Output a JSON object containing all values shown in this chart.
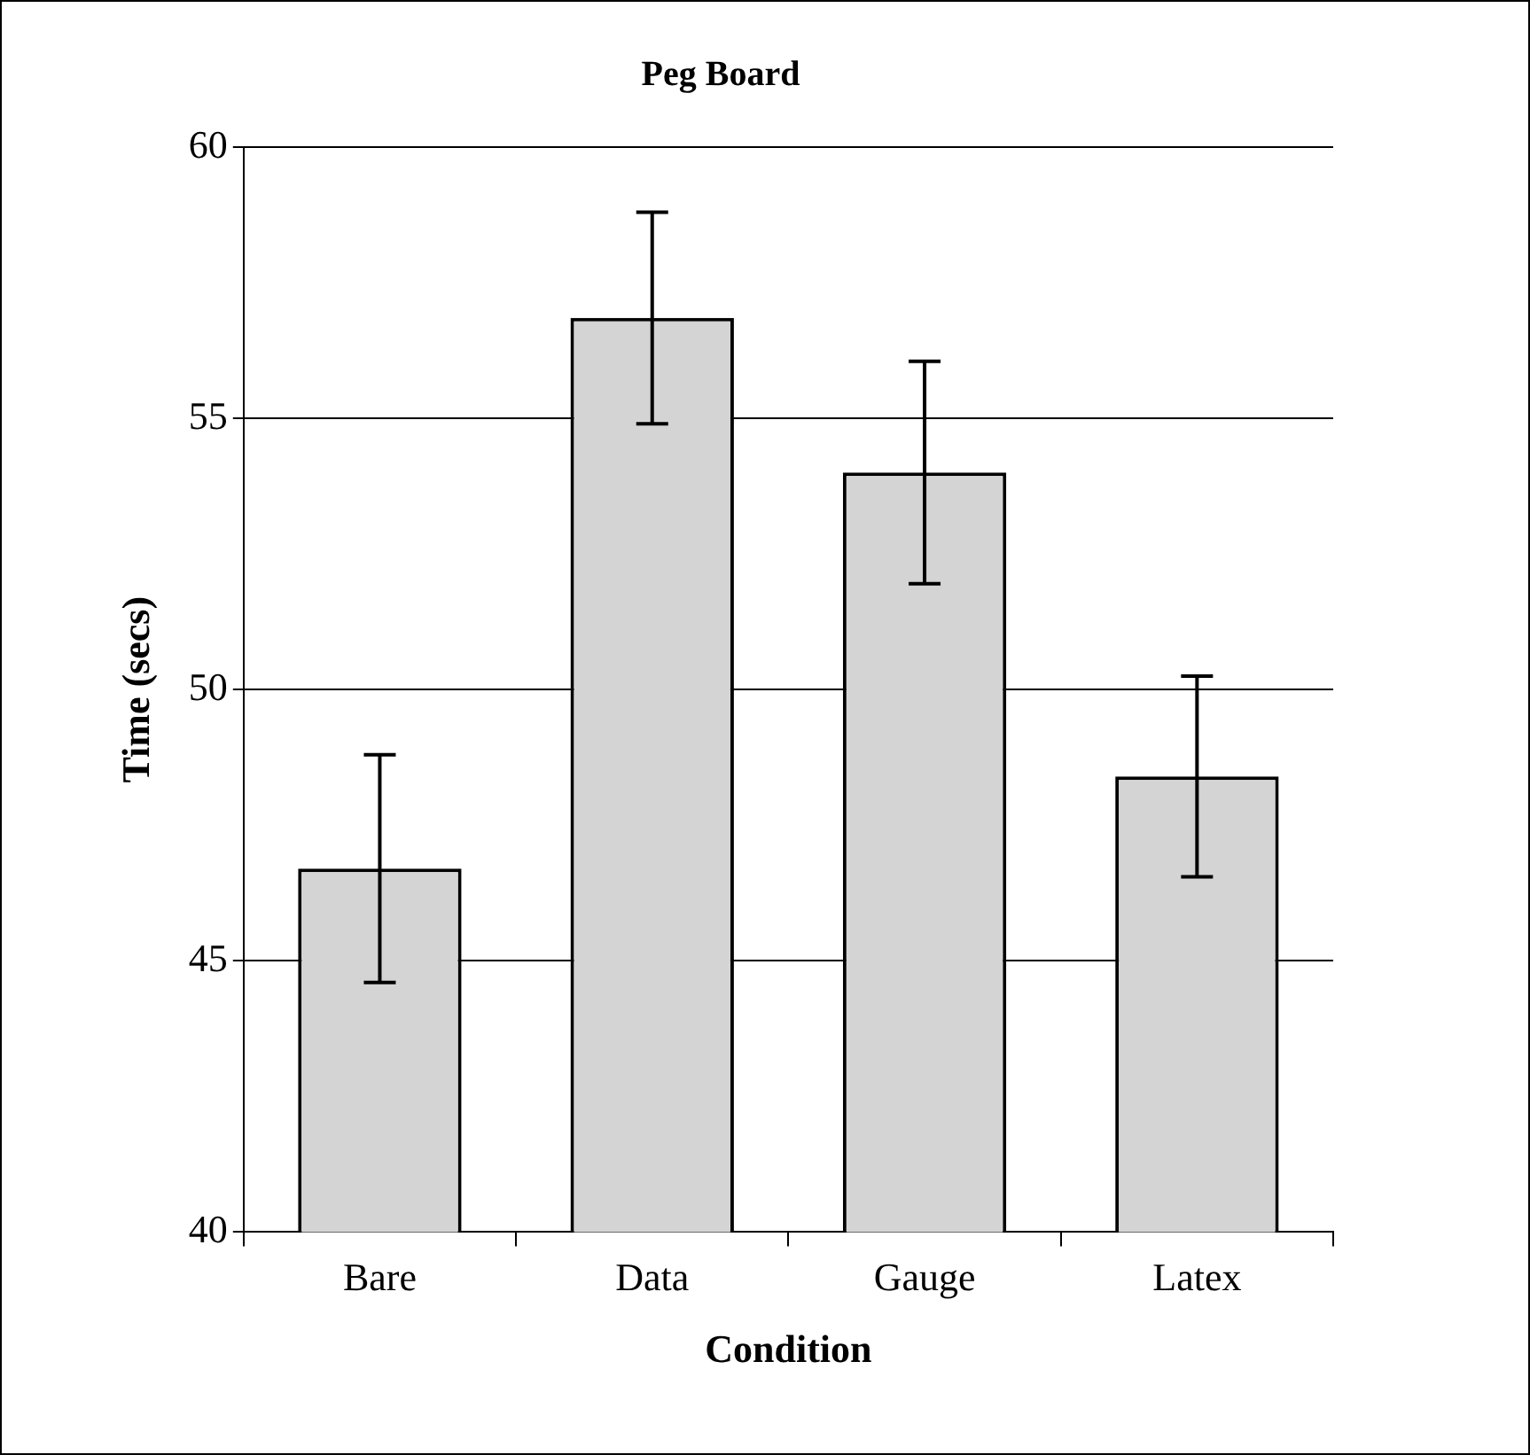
{
  "chart_data": {
    "type": "bar",
    "title": "Peg Board",
    "xlabel": "Condition",
    "ylabel": "Time (secs)",
    "categories": [
      "Bare",
      "Data",
      "Gauge",
      "Latex"
    ],
    "values": [
      46.7,
      56.85,
      54.0,
      48.4
    ],
    "errors": [
      2.1,
      1.95,
      2.05,
      1.85
    ],
    "color": "#d4d4d4",
    "ylim": [
      40,
      60
    ],
    "yticks": [
      40,
      45,
      50,
      55,
      60
    ],
    "grid": "y",
    "legend": false
  }
}
